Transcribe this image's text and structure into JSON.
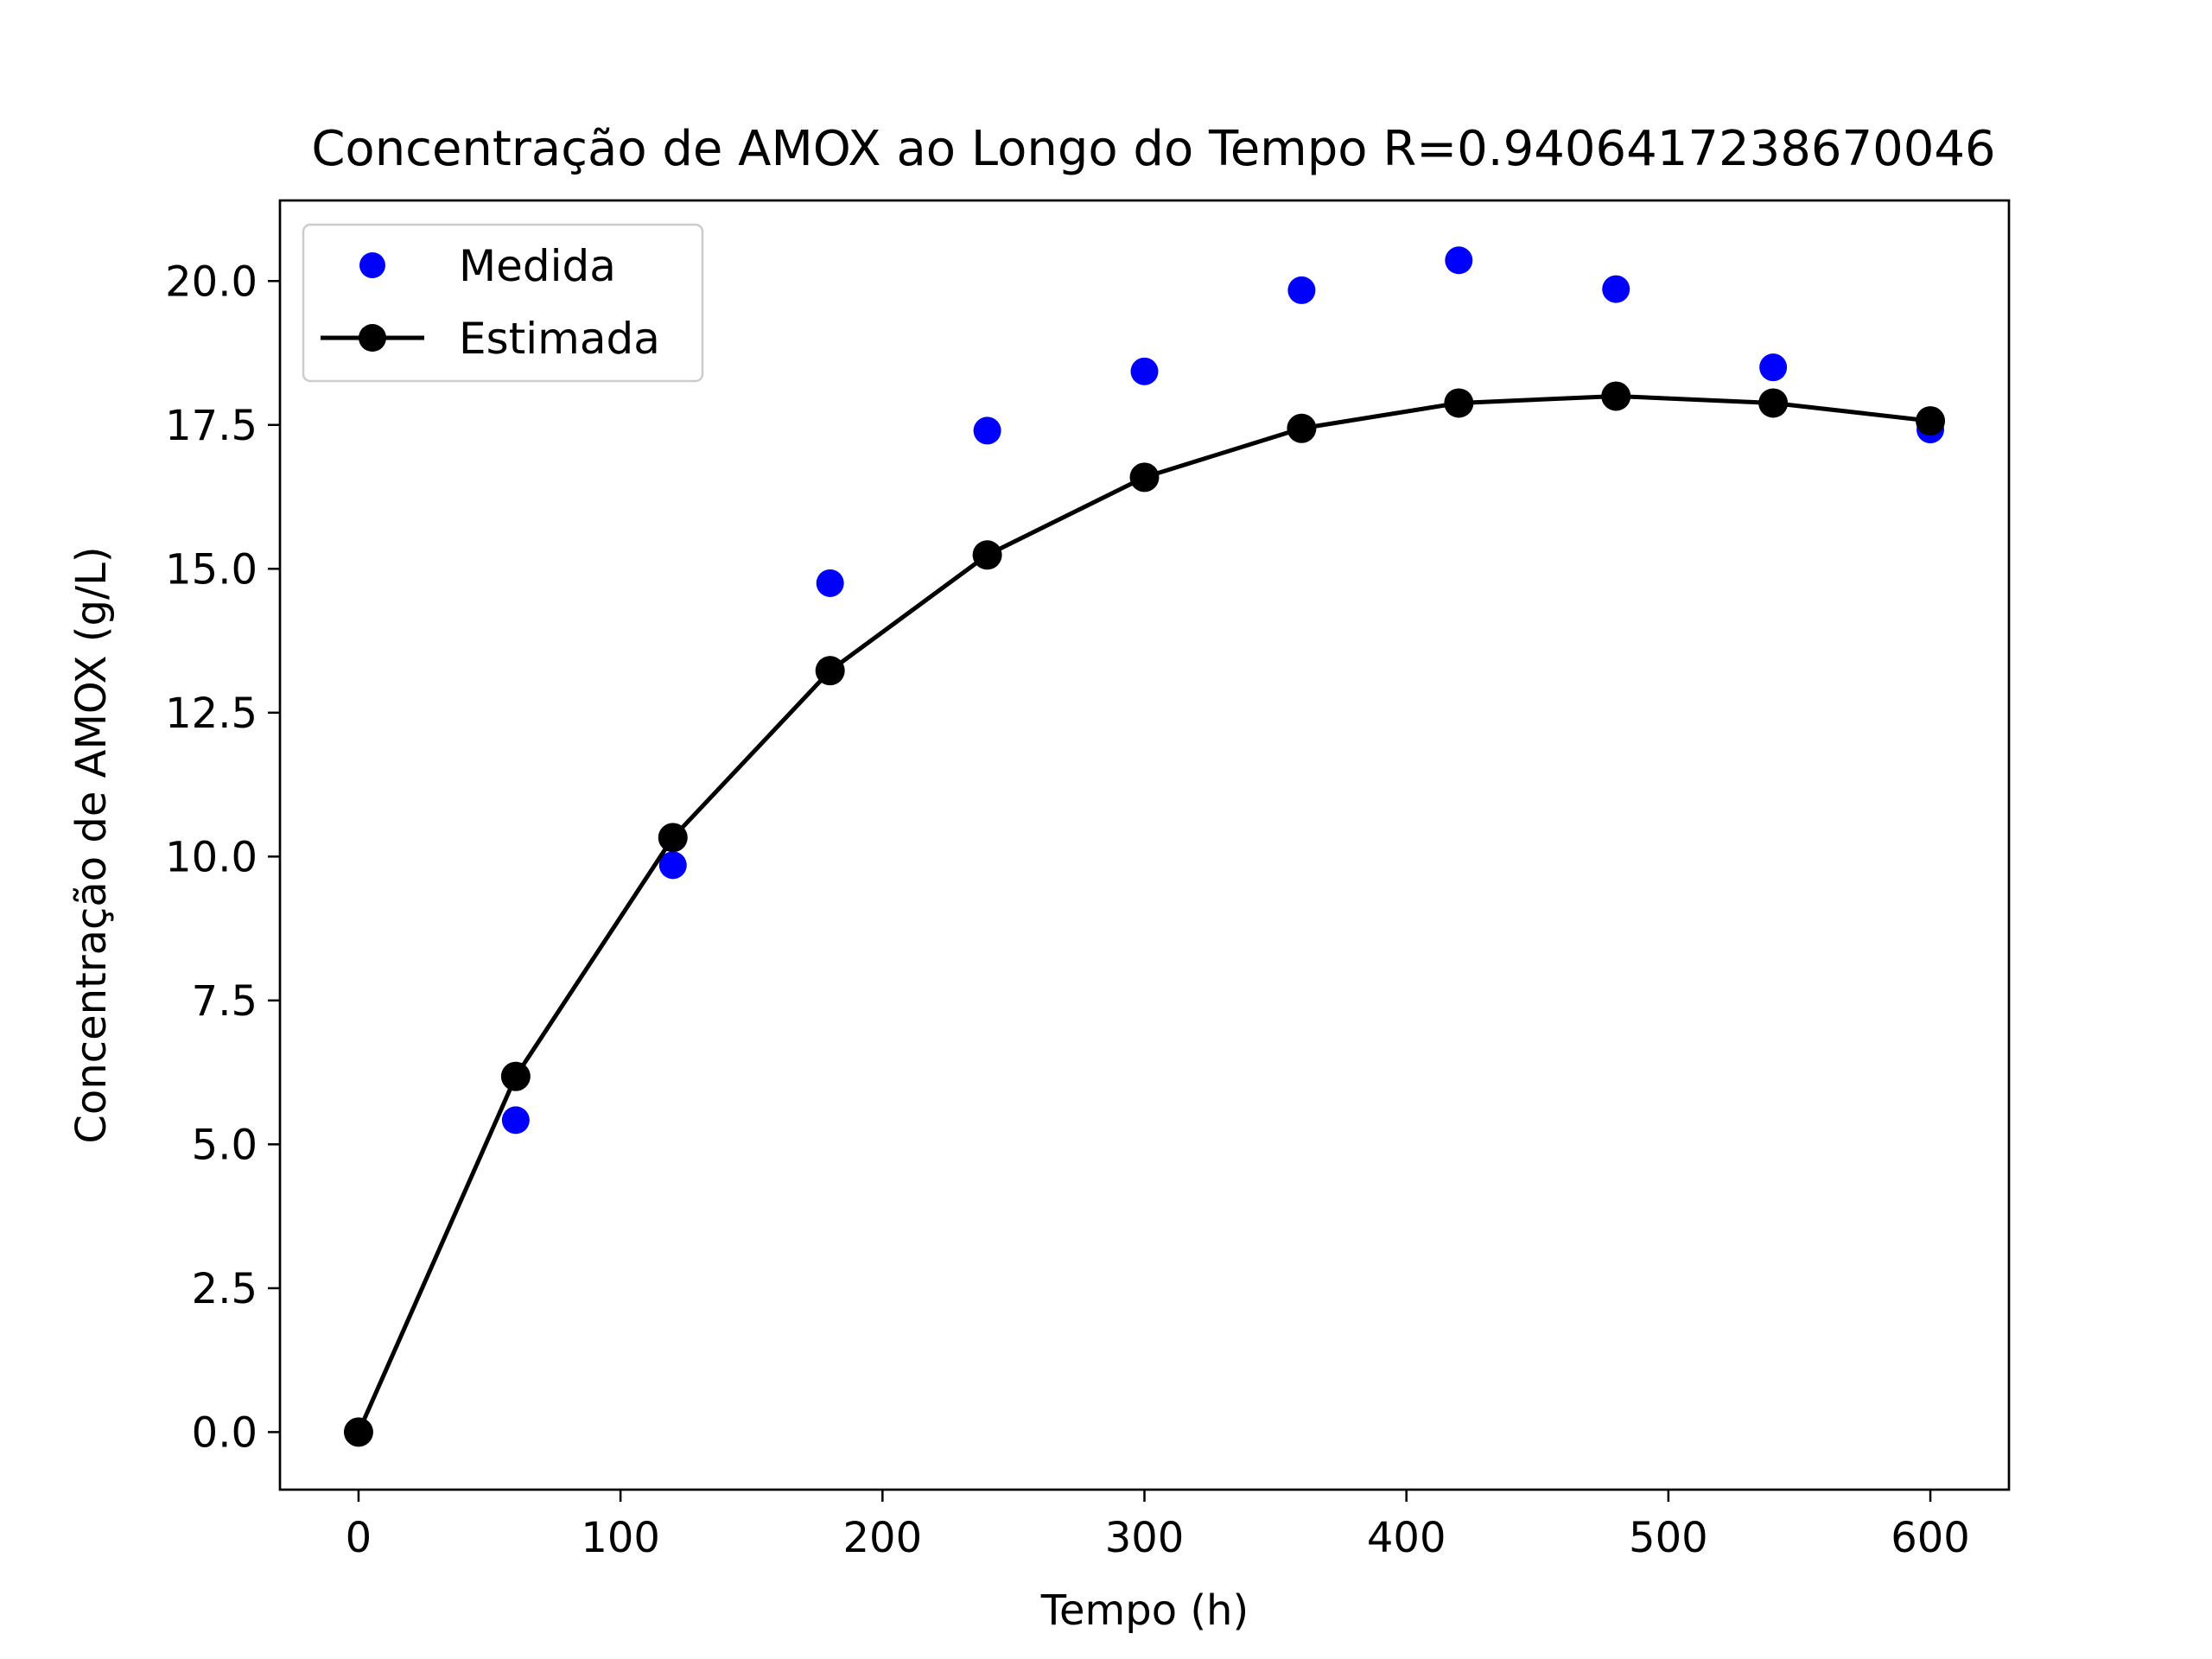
{
  "chart_data": {
    "type": "scatter",
    "title": "Concentração de AMOX ao Longo do Tempo R=0.9406417238670046",
    "xlabel": "Tempo (h)",
    "ylabel": "Concentração de AMOX (g/L)",
    "xlim": [
      -30,
      630
    ],
    "ylim": [
      -1.0,
      21.4
    ],
    "xticks": [
      0,
      100,
      200,
      300,
      400,
      500,
      600
    ],
    "xtick_labels": [
      "0",
      "100",
      "200",
      "300",
      "400",
      "500",
      "600"
    ],
    "yticks": [
      0.0,
      2.5,
      5.0,
      7.5,
      10.0,
      12.5,
      15.0,
      17.5,
      20.0
    ],
    "ytick_labels": [
      "0.0",
      "2.5",
      "5.0",
      "7.5",
      "10.0",
      "12.5",
      "15.0",
      "17.5",
      "20.0"
    ],
    "grid": false,
    "legend_position": "top-left",
    "series": [
      {
        "name": "Medida",
        "style": "markers",
        "color": "#0000ff",
        "x": [
          0,
          60,
          120,
          180,
          240,
          300,
          360,
          420,
          480,
          540,
          600
        ],
        "y": [
          0.0,
          5.42,
          9.85,
          14.75,
          17.4,
          18.43,
          19.84,
          20.36,
          19.86,
          18.5,
          17.42
        ]
      },
      {
        "name": "Estimada",
        "style": "line-markers",
        "color": "#000000",
        "x": [
          0,
          60,
          120,
          180,
          240,
          300,
          360,
          420,
          480,
          540,
          600
        ],
        "y": [
          0.0,
          6.18,
          10.33,
          13.23,
          15.24,
          16.59,
          17.44,
          17.88,
          18.0,
          17.88,
          17.57
        ]
      }
    ]
  }
}
